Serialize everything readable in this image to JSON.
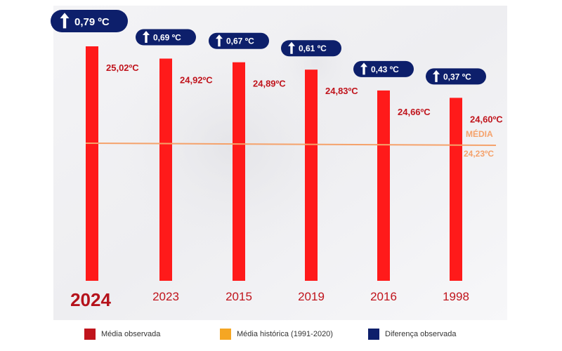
{
  "chart_data": {
    "type": "bar",
    "categories": [
      "2024",
      "2023",
      "2015",
      "2019",
      "2016",
      "1998"
    ],
    "values": [
      25.02,
      24.92,
      24.89,
      24.83,
      24.66,
      24.6
    ],
    "value_labels": [
      "25,02ºC",
      "24,92ºC",
      "24,89ºC",
      "24,83ºC",
      "24,66ºC",
      "24,60ºC"
    ],
    "differences": [
      0.79,
      0.69,
      0.67,
      0.61,
      0.43,
      0.37
    ],
    "difference_labels": [
      "0,79 ºC",
      "0,69 ºC",
      "0,67 ºC",
      "0,61 ºC",
      "0,43 ºC",
      "0,37 ºC"
    ],
    "reference": {
      "label": "MÉDIA",
      "value": 24.23,
      "value_label": "24,23ºC"
    },
    "grid": false,
    "legend_position": "bottom"
  },
  "legend": [
    {
      "label": "Média observada",
      "color": "#c0141c"
    },
    {
      "label": "Média histórica (1991-2020)",
      "color": "#f5a623"
    },
    {
      "label": "Diferença observada",
      "color": "#0d1f6b"
    }
  ],
  "colors": {
    "bar": "#ff1a1a",
    "value_label": "#c0141c",
    "reference_line": "#f5a26b",
    "badge": "#0d1f6b",
    "badge_text": "#ffffff",
    "category_text": "#c0141c",
    "highlight_category": "#b5121b"
  },
  "icons": {
    "badge_arrow": "arrow-up-icon"
  }
}
